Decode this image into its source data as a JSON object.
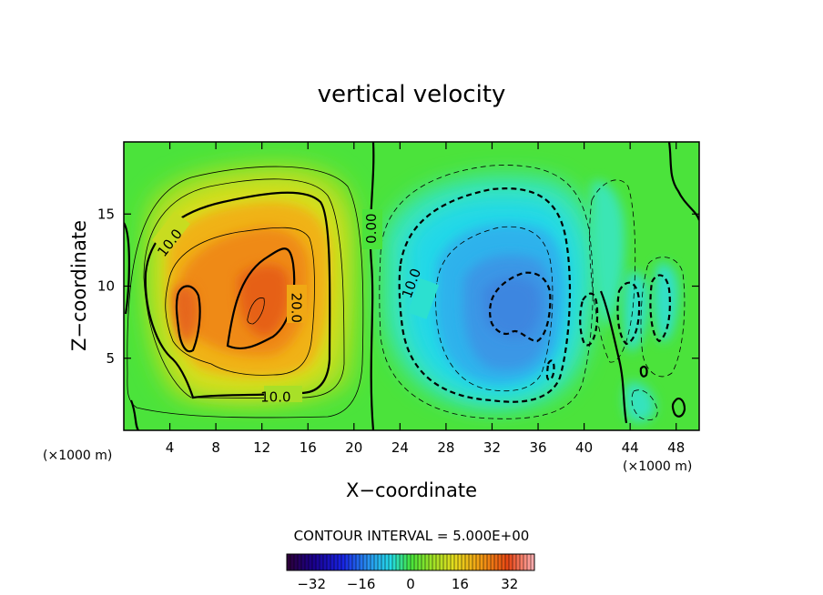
{
  "chart_data": {
    "type": "heatmap",
    "title": "vertical velocity",
    "xlabel": "X−coordinate",
    "ylabel": "Z−coordinate",
    "x_unit_label": "(×1000 m)",
    "x_unit_label_right": "(×1000 m)",
    "xlim": [
      0,
      50
    ],
    "ylim": [
      0,
      20
    ],
    "x_ticks": [
      4,
      8,
      12,
      16,
      20,
      24,
      28,
      32,
      36,
      40,
      44,
      48
    ],
    "y_ticks": [
      5,
      10,
      15
    ],
    "contour_interval_text": "CONTOUR INTERVAL = 5.000E+00",
    "contour_interval": 5,
    "colorbar": {
      "min": -40,
      "max": 40,
      "ticks": [
        -32,
        -16,
        0,
        16,
        32
      ],
      "tick_labels": [
        "−32",
        "−16",
        "0",
        "16",
        "32"
      ]
    },
    "contour_labels": [
      {
        "text": "10.0",
        "x": 4.0,
        "y": 13.0,
        "rotate": -52
      },
      {
        "text": "20.0",
        "x": 15.0,
        "y": 8.5,
        "rotate": 90
      },
      {
        "text": "10.0",
        "x": 13.2,
        "y": 2.3,
        "rotate": 0
      },
      {
        "text": "0.00",
        "x": 21.5,
        "y": 14.0,
        "rotate": -90
      },
      {
        "text": "10.0",
        "x": 25.0,
        "y": 10.2,
        "rotate": -70
      }
    ],
    "features": [
      {
        "name": "updraft",
        "center_x": 11,
        "center_z": 9,
        "peak_value": 25
      },
      {
        "name": "downdraft",
        "center_x": 34,
        "center_z": 8.5,
        "peak_value": -22
      }
    ]
  }
}
